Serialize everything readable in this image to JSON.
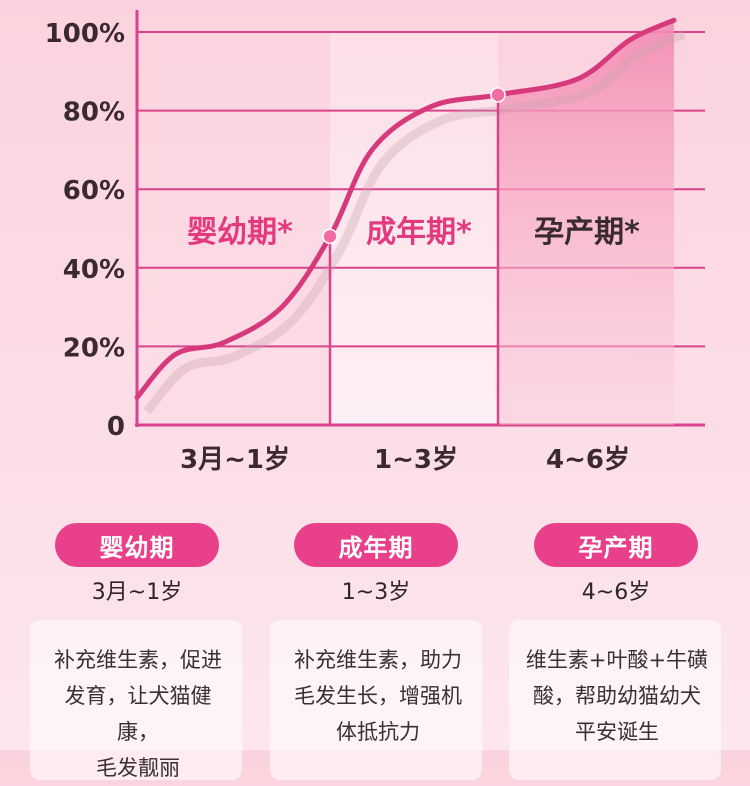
{
  "chart_data": {
    "type": "line",
    "y_ticks": [
      "0",
      "20%",
      "40%",
      "60%",
      "80%",
      "100%"
    ],
    "ylim": [
      0,
      100
    ],
    "grid": true,
    "colors": {
      "line": "#d63a7c",
      "axis": "#d8438b",
      "text_pink": "#e3397e",
      "text_dark": "#3a2a30"
    },
    "stages": [
      {
        "label": "婴幼期*",
        "x_label": "3月~1岁"
      },
      {
        "label": "成年期*",
        "x_label": "1~3岁"
      },
      {
        "label": "孕产期*",
        "x_label": "4~6岁"
      }
    ],
    "curve": [
      {
        "x": 0.0,
        "y": 7
      },
      {
        "x": 0.2,
        "y": 18
      },
      {
        "x": 0.45,
        "y": 21
      },
      {
        "x": 0.75,
        "y": 30
      },
      {
        "x": 1.0,
        "y": 48
      },
      {
        "x": 1.25,
        "y": 70
      },
      {
        "x": 1.6,
        "y": 81
      },
      {
        "x": 2.0,
        "y": 84
      },
      {
        "x": 2.45,
        "y": 88
      },
      {
        "x": 2.75,
        "y": 98
      },
      {
        "x": 3.0,
        "y": 103
      }
    ],
    "markers": [
      {
        "x": 1.0,
        "y": 48
      },
      {
        "x": 2.0,
        "y": 84
      }
    ]
  },
  "cards": [
    {
      "title": "婴幼期",
      "age": "3月~1岁",
      "lines": [
        "补充维生素，促进",
        "发育，让犬猫健康，",
        "毛发靓丽"
      ]
    },
    {
      "title": "成年期",
      "age": "1~3岁",
      "lines": [
        "补充维生素，助力",
        "毛发生长，增强机",
        "体抵抗力"
      ]
    },
    {
      "title": "孕产期",
      "age": "4~6岁",
      "lines": [
        "维生素+叶酸+牛磺",
        "酸，帮助幼猫幼犬",
        "平安诞生"
      ]
    }
  ]
}
